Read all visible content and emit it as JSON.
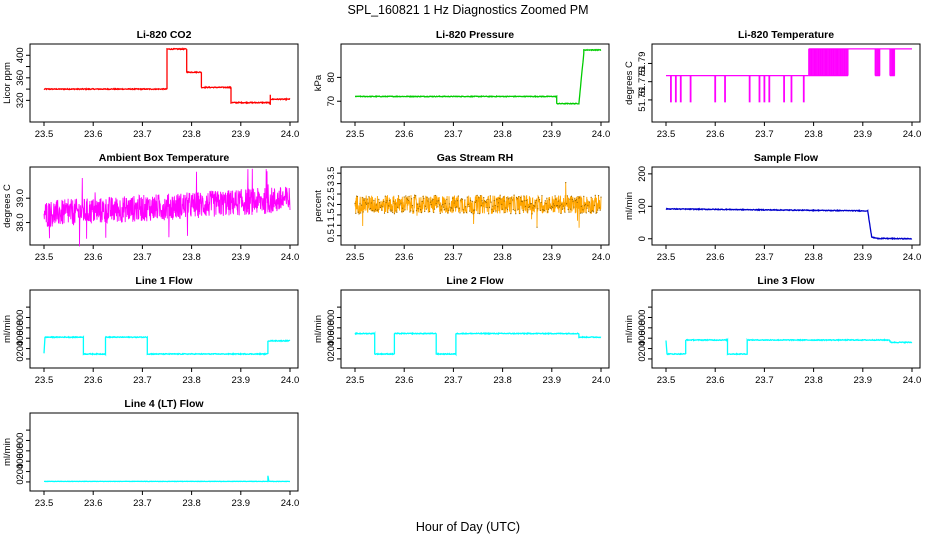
{
  "page": {
    "title": "SPL_160821  1 Hz Diagnostics Zoomed PM",
    "xlabel": "Hour of Day (UTC)"
  },
  "chart_data": [
    {
      "type": "line",
      "title": "Li-820 CO2",
      "ylabel": "Licor ppm",
      "color": "#ff0000",
      "xlim": [
        23.5,
        24.0
      ],
      "ylim": [
        310,
        420
      ],
      "xticks": [
        "23.5",
        "23.6",
        "23.7",
        "23.8",
        "23.9",
        "24.0"
      ],
      "yticks": [
        320,
        340,
        360,
        380,
        400
      ],
      "ytick_labels": [
        "320",
        "",
        "360",
        "",
        "400"
      ],
      "noise": 0.8,
      "segments": [
        [
          23.5,
          340
        ],
        [
          23.75,
          340
        ],
        [
          23.75,
          411
        ],
        [
          23.79,
          411
        ],
        [
          23.79,
          370
        ],
        [
          23.82,
          370
        ],
        [
          23.82,
          343
        ],
        [
          23.88,
          343
        ],
        [
          23.88,
          316
        ],
        [
          23.96,
          316
        ],
        [
          23.96,
          312
        ],
        [
          23.96,
          330
        ],
        [
          23.96,
          322
        ],
        [
          24.0,
          322
        ]
      ]
    },
    {
      "type": "line",
      "title": "Li-820 Pressure",
      "ylabel": "kPa",
      "color": "#00cc00",
      "xlim": [
        23.5,
        24.0
      ],
      "ylim": [
        68,
        94
      ],
      "xticks": [
        "23.5",
        "23.6",
        "23.7",
        "23.8",
        "23.9",
        "24.0"
      ],
      "yticks": [
        70,
        80
      ],
      "ytick_labels": [
        "70",
        "80"
      ],
      "noise": 0.15,
      "segments": [
        [
          23.5,
          72
        ],
        [
          23.91,
          72
        ],
        [
          23.91,
          69
        ],
        [
          23.955,
          69
        ],
        [
          23.965,
          90
        ],
        [
          23.965,
          91.5
        ],
        [
          24.0,
          91.5
        ]
      ]
    },
    {
      "type": "binary",
      "title": "Li-820 Temperature",
      "ylabel": "degrees C",
      "color": "#ff00ff",
      "xlim": [
        23.5,
        24.0
      ],
      "ylim": [
        51.755,
        51.806
      ],
      "xticks": [
        "23.5",
        "23.6",
        "23.7",
        "23.8",
        "23.9",
        "24.0"
      ],
      "yticks": [
        51.76,
        51.775,
        51.79
      ],
      "ytick_labels": [
        "51.76",
        "51.775",
        "51.79"
      ],
      "levels": [
        51.758,
        51.78,
        51.802
      ],
      "drops": [
        23.51,
        23.52,
        23.53,
        23.55,
        23.6,
        23.62,
        23.67,
        23.69,
        23.7,
        23.71,
        23.74,
        23.755,
        23.78
      ],
      "upper_start": 23.79,
      "upper_bands": [
        [
          23.79,
          23.87
        ],
        [
          23.925,
          23.935
        ],
        [
          23.955,
          23.965
        ]
      ]
    },
    {
      "type": "noise",
      "title": "Ambient Box Temperature",
      "ylabel": "degrees C",
      "color": "#ff00ff",
      "xlim": [
        23.5,
        24.0
      ],
      "ylim": [
        37.2,
        40.2
      ],
      "xticks": [
        "23.5",
        "23.6",
        "23.7",
        "23.8",
        "23.9",
        "24.0"
      ],
      "yticks": [
        38,
        39
      ],
      "ytick_labels": [
        "38.0",
        "39.0"
      ],
      "base": [
        [
          23.5,
          38.35
        ],
        [
          24.0,
          38.95
        ]
      ],
      "amplitude": 0.55
    },
    {
      "type": "noise",
      "title": "Gas Stream RH",
      "ylabel": "percent",
      "color": "#ffa500",
      "xlim": [
        23.5,
        24.0
      ],
      "ylim": [
        0.2,
        3.7
      ],
      "xticks": [
        "23.5",
        "23.6",
        "23.7",
        "23.8",
        "23.9",
        "24.0"
      ],
      "yticks": [
        0.5,
        1,
        1.5,
        2,
        2.5,
        3,
        3.5
      ],
      "ytick_labels": [
        "0.5",
        "1",
        "1.5",
        "2",
        "2.5",
        "3",
        "3.5"
      ],
      "base": [
        [
          23.5,
          2.0
        ],
        [
          24.0,
          2.0
        ]
      ],
      "amplitude": 0.45
    },
    {
      "type": "line",
      "title": "Sample Flow",
      "ylabel": "ml/min",
      "color": "#0000cc",
      "xlim": [
        23.5,
        24.0
      ],
      "ylim": [
        -10,
        215
      ],
      "xticks": [
        "23.5",
        "23.6",
        "23.7",
        "23.8",
        "23.9",
        "24.0"
      ],
      "yticks": [
        0,
        100,
        200
      ],
      "ytick_labels": [
        "0",
        "100",
        "200"
      ],
      "noise": 1.2,
      "segments": [
        [
          23.5,
          92
        ],
        [
          23.91,
          86
        ],
        [
          23.918,
          5
        ],
        [
          23.93,
          1
        ],
        [
          24.0,
          0
        ]
      ]
    },
    {
      "type": "line",
      "title": "Line 1 Flow",
      "ylabel": "ml/min",
      "color": "#00ffff",
      "xlim": [
        23.5,
        24.0
      ],
      "ylim": [
        -40,
        1060
      ],
      "xticks": [
        "23.5",
        "23.6",
        "23.7",
        "23.8",
        "23.9",
        "24.0"
      ],
      "yticks": [
        0,
        200,
        400,
        600,
        800,
        1000
      ],
      "ytick_labels": [
        "0",
        "200",
        "400",
        "600",
        "800",
        ""
      ],
      "noise": 8,
      "segments": [
        [
          23.5,
          105
        ],
        [
          23.502,
          420
        ],
        [
          23.58,
          420
        ],
        [
          23.58,
          95
        ],
        [
          23.625,
          95
        ],
        [
          23.625,
          420
        ],
        [
          23.71,
          420
        ],
        [
          23.71,
          95
        ],
        [
          23.955,
          95
        ],
        [
          23.955,
          350
        ],
        [
          24.0,
          350
        ]
      ]
    },
    {
      "type": "line",
      "title": "Line 2 Flow",
      "ylabel": "ml/min",
      "color": "#00ffff",
      "xlim": [
        23.5,
        24.0
      ],
      "ylim": [
        -40,
        1060
      ],
      "xticks": [
        "23.5",
        "23.6",
        "23.7",
        "23.8",
        "23.9",
        "24.0"
      ],
      "yticks": [
        0,
        200,
        400,
        600,
        800,
        1000
      ],
      "ytick_labels": [
        "0",
        "200",
        "400",
        "600",
        "800",
        ""
      ],
      "noise": 8,
      "segments": [
        [
          23.5,
          490
        ],
        [
          23.54,
          490
        ],
        [
          23.54,
          95
        ],
        [
          23.58,
          95
        ],
        [
          23.58,
          490
        ],
        [
          23.665,
          490
        ],
        [
          23.665,
          95
        ],
        [
          23.705,
          95
        ],
        [
          23.705,
          490
        ],
        [
          23.955,
          490
        ],
        [
          23.955,
          420
        ],
        [
          24.0,
          420
        ]
      ]
    },
    {
      "type": "line",
      "title": "Line 3 Flow",
      "ylabel": "ml/min",
      "color": "#00ffff",
      "xlim": [
        23.5,
        24.0
      ],
      "ylim": [
        -40,
        1060
      ],
      "xticks": [
        "23.5",
        "23.6",
        "23.7",
        "23.8",
        "23.9",
        "24.0"
      ],
      "yticks": [
        0,
        200,
        400,
        600,
        800,
        1000
      ],
      "ytick_labels": [
        "0",
        "200",
        "400",
        "600",
        "800",
        ""
      ],
      "noise": 8,
      "segments": [
        [
          23.5,
          350
        ],
        [
          23.502,
          95
        ],
        [
          23.54,
          95
        ],
        [
          23.54,
          365
        ],
        [
          23.625,
          365
        ],
        [
          23.625,
          95
        ],
        [
          23.665,
          95
        ],
        [
          23.665,
          365
        ],
        [
          23.955,
          365
        ],
        [
          23.955,
          320
        ],
        [
          24.0,
          320
        ]
      ]
    },
    {
      "type": "line",
      "title": "Line 4 (LT) Flow",
      "ylabel": "ml/min",
      "color": "#00ffff",
      "xlim": [
        23.5,
        24.0
      ],
      "ylim": [
        -40,
        1060
      ],
      "xticks": [
        "23.5",
        "23.6",
        "23.7",
        "23.8",
        "23.9",
        "24.0"
      ],
      "yticks": [
        0,
        200,
        400,
        600,
        800,
        1000
      ],
      "ytick_labels": [
        "0",
        "200",
        "400",
        "600",
        "800",
        ""
      ],
      "noise": 3,
      "segments": [
        [
          23.5,
          10
        ],
        [
          23.955,
          10
        ],
        [
          23.955,
          120
        ],
        [
          23.957,
          10
        ],
        [
          24.0,
          10
        ]
      ]
    }
  ]
}
